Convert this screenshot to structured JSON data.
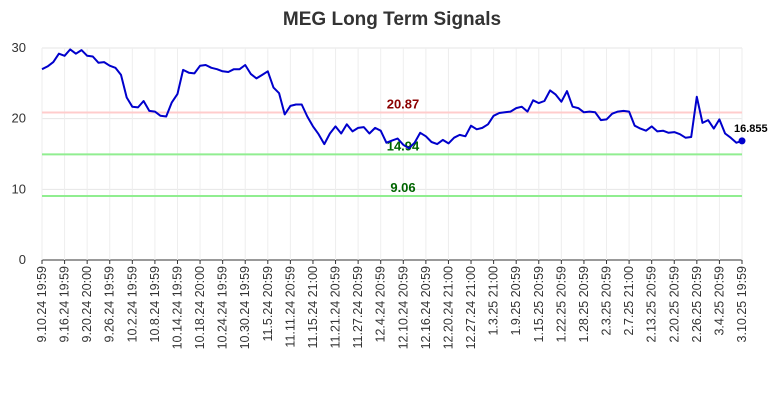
{
  "chart_data": {
    "type": "line",
    "title": "MEG Long Term Signals",
    "ylim": [
      0,
      30
    ],
    "yticks": [
      0,
      10,
      20,
      30
    ],
    "grid": true,
    "xticks": [
      "9.10.24 19:59",
      "9.16.24 19:59",
      "9.20.24 20:00",
      "9.26.24 19:59",
      "10.2.24 19:59",
      "10.8.24 19:59",
      "10.14.24 19:59",
      "10.18.24 20:00",
      "10.24.24 19:59",
      "10.30.24 19:59",
      "11.5.24 20:59",
      "11.11.24 20:59",
      "11.15.24 21:00",
      "11.21.24 20:59",
      "11.27.24 20:59",
      "12.4.24 20:59",
      "12.10.24 20:59",
      "12.16.24 20:59",
      "12.20.24 21:00",
      "12.27.24 21:00",
      "1.3.25 21:00",
      "1.9.25 20:59",
      "1.15.25 20:59",
      "1.22.25 20:59",
      "1.28.25 20:59",
      "2.3.25 20:59",
      "2.7.25 21:00",
      "2.13.25 20:59",
      "2.20.25 20:59",
      "2.26.25 20:59",
      "3.4.25 20:59",
      "3.10.25 19:59"
    ],
    "values": [
      27.0,
      27.4,
      28.0,
      29.2,
      28.9,
      29.8,
      29.2,
      29.7,
      28.9,
      28.8,
      27.9,
      28.0,
      27.5,
      27.2,
      26.2,
      23.0,
      21.7,
      21.6,
      22.5,
      21.1,
      21.0,
      20.4,
      20.3,
      22.3,
      23.5,
      26.9,
      26.5,
      26.4,
      27.5,
      27.6,
      27.2,
      27.0,
      26.7,
      26.6,
      27.0,
      27.0,
      27.6,
      26.3,
      25.7,
      26.2,
      26.7,
      24.4,
      23.6,
      20.6,
      21.8,
      22.0,
      22.0,
      20.3,
      18.9,
      17.8,
      16.4,
      17.9,
      18.9,
      17.9,
      19.2,
      18.2,
      18.7,
      18.8,
      17.9,
      18.7,
      18.3,
      16.6,
      16.9,
      17.2,
      16.3,
      15.8,
      16.6,
      18.0,
      17.5,
      16.7,
      16.4,
      17.0,
      16.5,
      17.3,
      17.7,
      17.5,
      19.0,
      18.5,
      18.7,
      19.2,
      20.4,
      20.8,
      20.9,
      21.0,
      21.5,
      21.7,
      21.0,
      22.6,
      22.2,
      22.5,
      24.0,
      23.4,
      22.4,
      23.9,
      21.7,
      21.5,
      20.9,
      21.0,
      20.9,
      19.8,
      19.9,
      20.7,
      21.0,
      21.1,
      21.0,
      19.0,
      18.6,
      18.3,
      18.9,
      18.2,
      18.3,
      18.0,
      18.1,
      17.8,
      17.3,
      17.4,
      23.1,
      19.4,
      19.8,
      18.6,
      19.9,
      17.9,
      17.3,
      16.6,
      16.855
    ],
    "levels": [
      {
        "value": 20.87,
        "label": "20.87",
        "line_color": "#ffcccc",
        "text_color": "#8b0000"
      },
      {
        "value": 14.94,
        "label": "14.94",
        "line_color": "#90ee90",
        "text_color": "#006400"
      },
      {
        "value": 9.06,
        "label": "9.06",
        "line_color": "#90ee90",
        "text_color": "#006400"
      }
    ],
    "last_value_label": "16.855",
    "series_color": "#0000cc"
  }
}
